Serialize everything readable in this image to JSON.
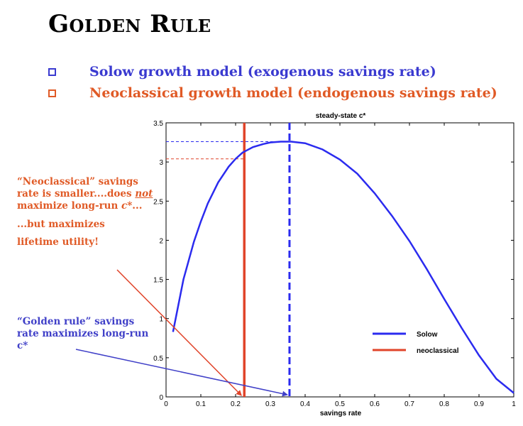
{
  "slide": {
    "title": "Golden Rule",
    "bullets": [
      {
        "text": "Solow growth model (exogenous savings rate)",
        "color": "#3a3ad0"
      },
      {
        "text": "Neoclassical growth model (endogenous savings rate)",
        "color": "#e05a26"
      }
    ],
    "annotations": {
      "neoclassical_pre": "“Neoclassical” savings rate is smaller....does ",
      "neoclassical_em": "not",
      "neoclassical_post": " maximize long-run ",
      "neoclassical_c": "c*",
      "neoclassical_end": "...",
      "but": "...but maximizes",
      "lifetime": "lifetime utility!",
      "golden_pre": "“Golden rule” savings rate maximizes long-run ",
      "golden_c": "c*"
    }
  },
  "chart_data": {
    "type": "line",
    "title": "steady-state c*",
    "xlabel": "savings rate",
    "ylabel": "",
    "xlim": [
      0,
      1
    ],
    "ylim": [
      0,
      3.5
    ],
    "x_ticks": [
      "0",
      "0.1",
      "0.2",
      "0.3",
      "0.4",
      "0.5",
      "0.6",
      "0.7",
      "0.8",
      "0.9",
      "1"
    ],
    "y_ticks": [
      "0",
      "0.5",
      "1",
      "1.5",
      "2",
      "2.5",
      "3",
      "3.5"
    ],
    "series": [
      {
        "name": "Solow",
        "color": "#2b2bef",
        "x": [
          0.02,
          0.05,
          0.08,
          0.1,
          0.12,
          0.15,
          0.18,
          0.2,
          0.22,
          0.25,
          0.28,
          0.3,
          0.33,
          0.36,
          0.38,
          0.4,
          0.45,
          0.5,
          0.55,
          0.6,
          0.65,
          0.7,
          0.75,
          0.8,
          0.85,
          0.9,
          0.95,
          1.0
        ],
        "y": [
          0.83,
          1.5,
          1.98,
          2.24,
          2.47,
          2.74,
          2.94,
          3.04,
          3.12,
          3.19,
          3.23,
          3.25,
          3.26,
          3.26,
          3.25,
          3.24,
          3.16,
          3.03,
          2.85,
          2.6,
          2.31,
          1.99,
          1.63,
          1.25,
          0.88,
          0.53,
          0.23,
          0.05
        ]
      },
      {
        "name": "neoclassical",
        "color": "#e0442a",
        "x": [],
        "y": []
      }
    ],
    "markers": {
      "neoclassical_s": 0.225,
      "neoclassical_c": 3.04,
      "golden_s": 0.355,
      "golden_c": 3.26
    },
    "legend": "lower-right",
    "grid": false
  }
}
